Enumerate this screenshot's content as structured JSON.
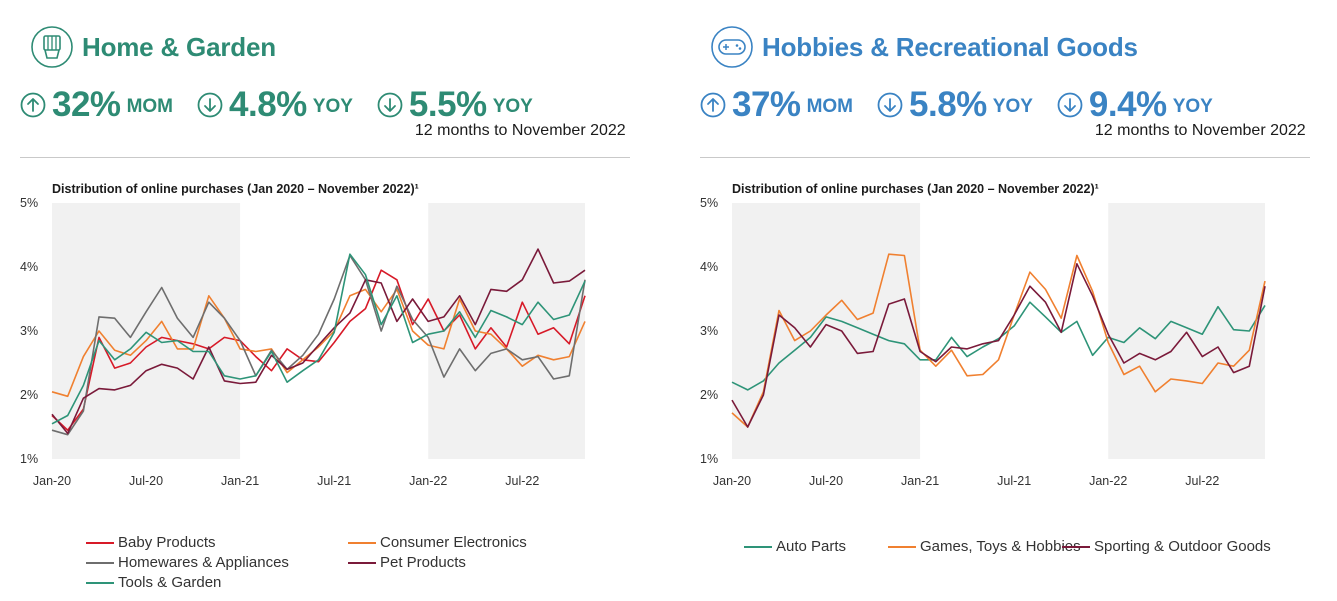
{
  "colors": {
    "green_accent": "#2e8b74",
    "blue_accent": "#3a83c3",
    "baby": "#d71a28",
    "consumer": "#f08030",
    "homewares": "#6e6e6e",
    "pet": "#7a1a3a",
    "tools": "#2e9478",
    "auto": "#2e9478",
    "games": "#f08030",
    "sporting": "#7a1a3a",
    "shade": "#f1f1f1"
  },
  "left": {
    "icon": "appliance-icon",
    "title": "Home & Garden",
    "stats": [
      {
        "icon": "arrow-up-circle-icon",
        "value": "32%",
        "unit": "MOM",
        "sub": ""
      },
      {
        "icon": "arrow-down-circle-icon",
        "value": "4.8%",
        "unit": "YOY",
        "sub": ""
      },
      {
        "icon": "arrow-down-circle-icon",
        "value": "5.5%",
        "unit": "YOY",
        "sub": "12 months to November 2022"
      }
    ]
  },
  "right": {
    "icon": "gamepad-icon",
    "title": "Hobbies & Recreational Goods",
    "stats": [
      {
        "icon": "arrow-up-circle-icon",
        "value": "37%",
        "unit": "MOM",
        "sub": ""
      },
      {
        "icon": "arrow-down-circle-icon",
        "value": "5.8%",
        "unit": "YOY",
        "sub": ""
      },
      {
        "icon": "arrow-down-circle-icon",
        "value": "9.4%",
        "unit": "YOY",
        "sub": "12 months to November 2022"
      }
    ]
  },
  "chart_data": [
    {
      "type": "line",
      "title": "Distribution of online purchases (Jan 2020 – November 2022)¹",
      "x_count": 35,
      "x_tick_labels": [
        "Jan-20",
        "Jul-20",
        "Jan-21",
        "Jul-21",
        "Jan-22",
        "Jul-22"
      ],
      "x_tick_index": [
        0,
        6,
        12,
        18,
        24,
        30
      ],
      "y_tick_labels": [
        "1%",
        "2%",
        "3%",
        "4%",
        "5%"
      ],
      "ylim": [
        1,
        5
      ],
      "shaded_ranges": [
        [
          0,
          12
        ],
        [
          24,
          34
        ]
      ],
      "legend": "bottom",
      "series": [
        {
          "name": "Baby Products",
          "color_key": "baby",
          "values": [
            1.68,
            1.45,
            1.78,
            2.9,
            2.42,
            2.5,
            2.75,
            2.9,
            2.85,
            2.8,
            2.72,
            2.9,
            2.85,
            2.6,
            2.38,
            2.72,
            2.55,
            2.52,
            2.82,
            3.15,
            3.35,
            3.95,
            3.8,
            3.1,
            3.5,
            3.0,
            3.25,
            2.72,
            3.05,
            2.75,
            3.45,
            2.95,
            3.05,
            2.8,
            3.55
          ]
        },
        {
          "name": "Consumer Electronics",
          "color_key": "consumer",
          "values": [
            2.05,
            1.98,
            2.6,
            3.0,
            2.7,
            2.62,
            2.85,
            3.15,
            2.72,
            2.72,
            3.55,
            3.2,
            2.72,
            2.68,
            2.72,
            2.35,
            2.55,
            2.75,
            3.0,
            3.55,
            3.65,
            3.3,
            3.65,
            3.0,
            2.78,
            2.72,
            3.5,
            3.0,
            2.95,
            2.72,
            2.45,
            2.62,
            2.55,
            2.6,
            3.15
          ]
        },
        {
          "name": "Homewares & Appliances",
          "color_key": "homewares",
          "values": [
            1.45,
            1.38,
            1.75,
            3.22,
            3.2,
            2.9,
            3.3,
            3.68,
            3.2,
            2.9,
            3.45,
            3.2,
            2.85,
            2.3,
            2.7,
            2.4,
            2.62,
            2.95,
            3.5,
            4.18,
            3.8,
            3.0,
            3.7,
            3.18,
            2.9,
            2.28,
            2.72,
            2.38,
            2.65,
            2.72,
            2.55,
            2.6,
            2.25,
            2.3,
            3.8
          ]
        },
        {
          "name": "Pet Products",
          "color_key": "pet",
          "values": [
            1.7,
            1.4,
            1.95,
            2.1,
            2.08,
            2.15,
            2.38,
            2.48,
            2.42,
            2.25,
            2.75,
            2.22,
            2.18,
            2.2,
            2.62,
            2.4,
            2.5,
            2.78,
            3.05,
            3.28,
            3.8,
            3.75,
            3.15,
            3.5,
            3.15,
            3.22,
            3.55,
            3.1,
            3.65,
            3.62,
            3.8,
            4.28,
            3.75,
            3.78,
            3.95
          ]
        },
        {
          "name": "Tools & Garden",
          "color_key": "tools",
          "values": [
            1.55,
            1.68,
            2.15,
            2.85,
            2.55,
            2.72,
            2.98,
            2.82,
            2.85,
            2.68,
            2.68,
            2.3,
            2.25,
            2.3,
            2.68,
            2.2,
            2.38,
            2.55,
            2.98,
            4.2,
            3.88,
            3.1,
            3.55,
            2.82,
            2.95,
            3.0,
            3.3,
            2.9,
            3.32,
            3.22,
            3.1,
            3.45,
            3.18,
            3.25,
            3.78
          ]
        }
      ]
    },
    {
      "type": "line",
      "title": "Distribution of online purchases (Jan 2020 – November 2022)¹",
      "x_count": 35,
      "x_tick_labels": [
        "Jan-20",
        "Jul-20",
        "Jan-21",
        "Jul-21",
        "Jan-22",
        "Jul-22"
      ],
      "x_tick_index": [
        0,
        6,
        12,
        18,
        24,
        30
      ],
      "y_tick_labels": [
        "1%",
        "2%",
        "3%",
        "4%",
        "5%"
      ],
      "ylim": [
        1,
        5
      ],
      "shaded_ranges": [
        [
          0,
          12
        ],
        [
          24,
          34
        ]
      ],
      "legend": "bottom",
      "series": [
        {
          "name": "Auto Parts",
          "color_key": "auto",
          "values": [
            2.2,
            2.08,
            2.22,
            2.5,
            2.7,
            2.9,
            3.22,
            3.15,
            3.05,
            2.95,
            2.85,
            2.8,
            2.55,
            2.55,
            2.9,
            2.6,
            2.75,
            2.88,
            3.08,
            3.45,
            3.22,
            2.98,
            3.15,
            2.62,
            2.9,
            2.82,
            3.05,
            2.88,
            3.15,
            3.05,
            2.95,
            3.38,
            3.02,
            3.0,
            3.4
          ]
        },
        {
          "name": "Games, Toys & Hobbies",
          "color_key": "games",
          "values": [
            1.72,
            1.5,
            2.05,
            3.32,
            2.85,
            3.0,
            3.25,
            3.48,
            3.18,
            3.28,
            4.2,
            4.18,
            2.7,
            2.45,
            2.7,
            2.3,
            2.32,
            2.55,
            3.25,
            3.92,
            3.65,
            3.2,
            4.18,
            3.62,
            2.82,
            2.32,
            2.45,
            2.05,
            2.25,
            2.22,
            2.18,
            2.5,
            2.45,
            2.7,
            3.78
          ]
        },
        {
          "name": "Sporting & Outdoor Goods",
          "color_key": "sporting",
          "values": [
            1.92,
            1.5,
            2.0,
            3.25,
            3.05,
            2.75,
            3.1,
            3.0,
            2.65,
            2.68,
            3.42,
            3.5,
            2.68,
            2.52,
            2.75,
            2.72,
            2.8,
            2.85,
            3.25,
            3.7,
            3.45,
            2.98,
            4.05,
            3.55,
            2.95,
            2.5,
            2.65,
            2.55,
            2.68,
            2.98,
            2.6,
            2.75,
            2.35,
            2.45,
            3.7
          ]
        }
      ]
    }
  ]
}
